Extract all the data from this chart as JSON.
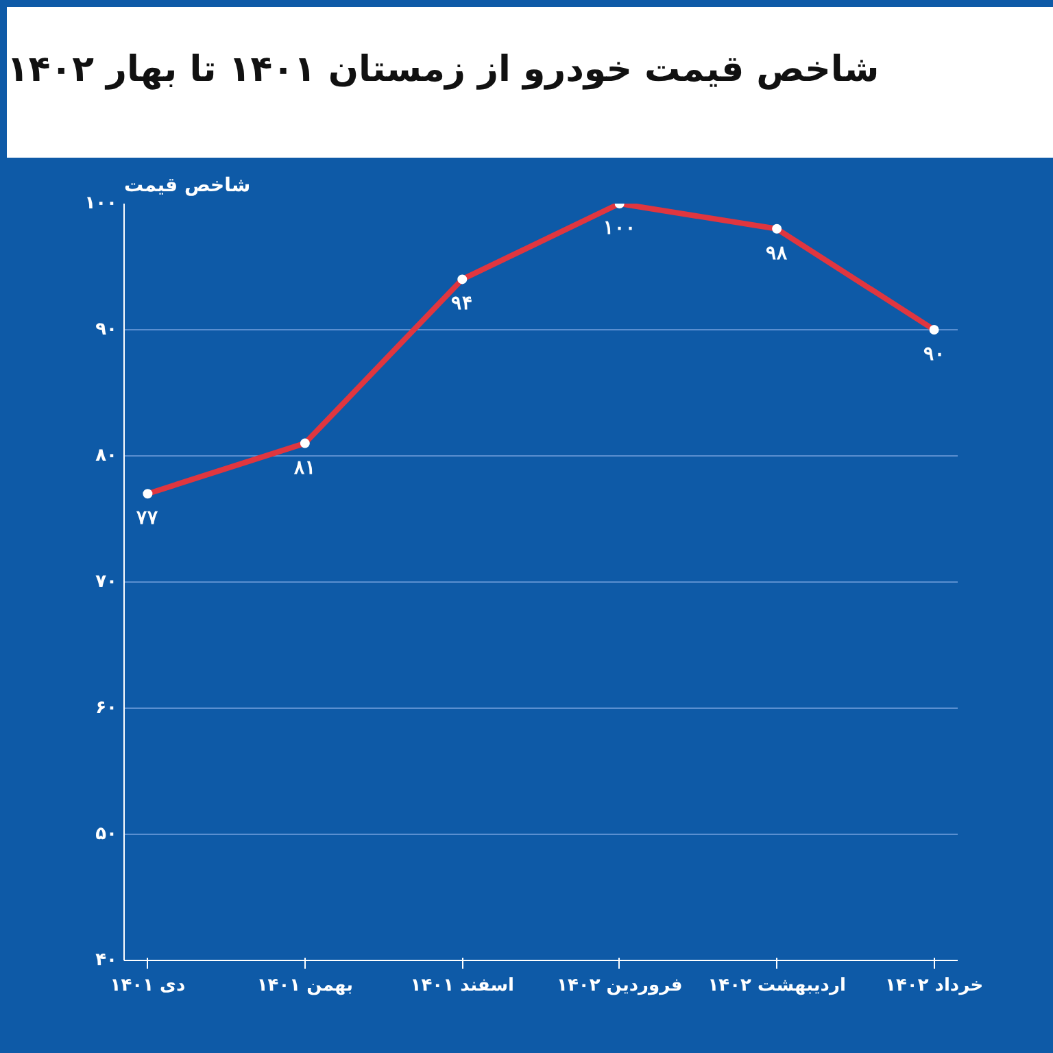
{
  "chart_data": {
    "type": "line",
    "title": "شاخص قیمت خودرو از زمستان ۱۴۰۱ تا بهار ۱۴۰۲",
    "ylabel": "شاخص قیمت",
    "categories": [
      "دی ۱۴۰۱",
      "بهمن ۱۴۰۱",
      "اسفند ۱۴۰۱",
      "فروردین ۱۴۰۲",
      "اردیبهشت ۱۴۰۲",
      "خرداد ۱۴۰۲"
    ],
    "series": [
      {
        "color": "#e0363f",
        "values": [
          77,
          81,
          94,
          100,
          98,
          90
        ],
        "value_labels": [
          "۷۷",
          "۸۱",
          "۹۴",
          "۱۰۰",
          "۹۸",
          "۹۰"
        ]
      }
    ],
    "ylim": [
      40,
      100
    ],
    "yticks": [
      {
        "value": 40,
        "label": "۴۰"
      },
      {
        "value": 50,
        "label": "۵۰"
      },
      {
        "value": 60,
        "label": "۶۰"
      },
      {
        "value": 70,
        "label": "۷۰"
      },
      {
        "value": 80,
        "label": "۸۰"
      },
      {
        "value": 90,
        "label": "۹۰"
      },
      {
        "value": 100,
        "label": "۱۰۰"
      }
    ],
    "grid": "y",
    "marker": "circle",
    "line_style": "solid"
  }
}
